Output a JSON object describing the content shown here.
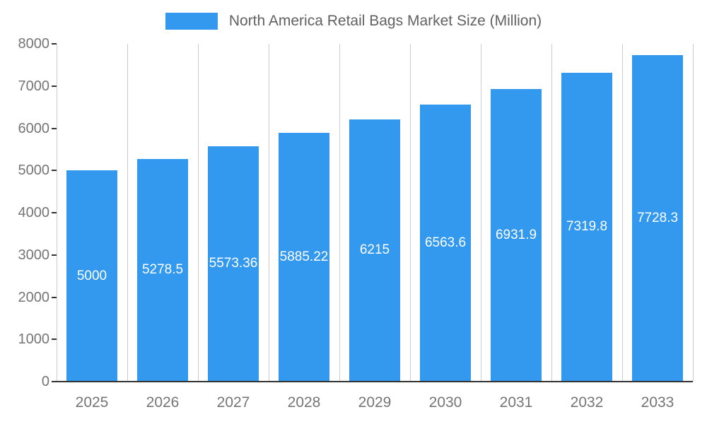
{
  "chart_data": {
    "type": "bar",
    "title": "North America Retail Bags Market Size (Million)",
    "legend_position": "top",
    "categories": [
      "2025",
      "2026",
      "2027",
      "2028",
      "2029",
      "2030",
      "2031",
      "2032",
      "2033"
    ],
    "series": [
      {
        "name": "North America Retail Bags Market Size (Million)",
        "values": [
          5000,
          5278.5,
          5573.36,
          5885.22,
          6215,
          6563.6,
          6931.9,
          7319.8,
          7728.3
        ]
      }
    ],
    "value_labels": [
      "5000",
      "5278.5",
      "5573.36",
      "5885.22",
      "6215",
      "6563.6",
      "6931.9",
      "7319.8",
      "7728.3"
    ],
    "xlabel": "",
    "ylabel": "",
    "ylim": [
      0,
      8000
    ],
    "yticks": [
      0,
      1000,
      2000,
      3000,
      4000,
      5000,
      6000,
      7000,
      8000
    ],
    "grid": "vertical",
    "colors": {
      "bar": "#3399EE",
      "title_text": "#616161",
      "axis_text": "#757575",
      "gridline": "#CCCCCC",
      "baseline": "#333333",
      "value_label": "#FFFFFF"
    }
  }
}
